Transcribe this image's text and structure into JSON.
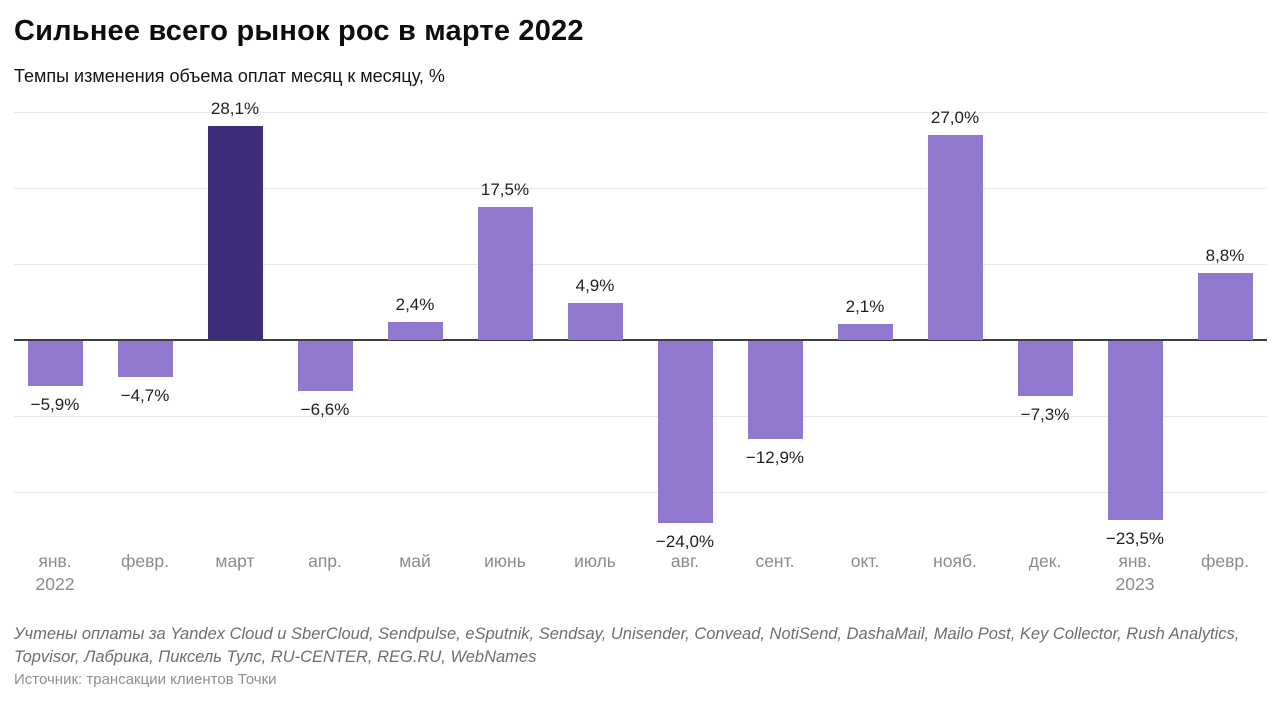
{
  "header": {
    "title": "Сильнее всего рынок рос в марте 2022",
    "subtitle": "Темпы изменения объема оплат месяц к месяцу, %"
  },
  "chart_data": {
    "type": "bar",
    "title": "Сильнее всего рынок рос в марте 2022",
    "subtitle": "Темпы изменения объема оплат месяц к месяцу, %",
    "categories": [
      "янв.",
      "февр.",
      "март",
      "апр.",
      "май",
      "июнь",
      "июль",
      "авг.",
      "сент.",
      "окт.",
      "нояб.",
      "дек.",
      "янв.",
      "февр."
    ],
    "category_sublabels": [
      "2022",
      "",
      "",
      "",
      "",
      "",
      "",
      "",
      "",
      "",
      "",
      "",
      "2023",
      ""
    ],
    "values": [
      -5.9,
      -4.7,
      28.1,
      -6.6,
      2.4,
      17.5,
      4.9,
      -24.0,
      -12.9,
      2.1,
      27.0,
      -7.3,
      -23.5,
      8.8
    ],
    "value_labels": [
      "−5,9%",
      "−4,7%",
      "28,1%",
      "−6,6%",
      "2,4%",
      "17,5%",
      "4,9%",
      "−24,0%",
      "−12,9%",
      "2,1%",
      "27,0%",
      "−7,3%",
      "−23,5%",
      "8,8%"
    ],
    "ylabel": "%",
    "ylim": [
      -30,
      32
    ],
    "gridline_values": [
      30,
      20,
      10,
      0,
      -10,
      -20
    ],
    "grid": "horizontal, unlabeled",
    "legend": "none",
    "bar_color": "#9277CE",
    "highlight_color": "#3F2D7C",
    "highlight_index": 2,
    "axis_color": "#3d3d3d",
    "gridline_color": "#e8e8e8"
  },
  "footer": {
    "note_lines": [
      "Учтены оплаты за Yandex Cloud и SberCloud, Sendpulse, eSputnik, Sendsay, Unisender, Convead, NotiSend, DashaMail, Mailo Post, Key Collector, Rush Analytics,",
      "Topvisor, Лабрика, Пиксель Тулс, RU-CENTER, REG.RU, WebNames"
    ],
    "source": "Источник: трансакции клиентов Точки"
  }
}
